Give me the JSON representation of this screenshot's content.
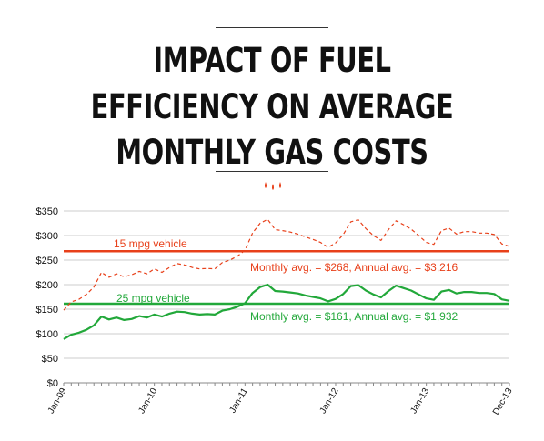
{
  "title_lines": [
    "IMPACT OF FUEL",
    "EFFICIENCY ON AVERAGE",
    "MONTHLY GAS COSTS"
  ],
  "colors": {
    "red": "#e8401a",
    "green": "#22a83a",
    "grid": "#cccccc",
    "text": "#111111"
  },
  "icon": "three-drops-icon",
  "chart_data": {
    "type": "line",
    "title": "IMPACT OF FUEL EFFICIENCY ON AVERAGE MONTHLY GAS COSTS",
    "xlabel": "",
    "ylabel": "",
    "ylim": [
      0,
      350
    ],
    "y_ticks": [
      "$0",
      "$50",
      "$100",
      "$150",
      "$200",
      "$250",
      "$300",
      "$350"
    ],
    "y_tick_values": [
      0,
      50,
      100,
      150,
      200,
      250,
      300,
      350
    ],
    "x_tick_labels": [
      "Jan-09",
      "Jan-10",
      "Jan-11",
      "Jan-12",
      "Jan-13",
      "Dec-13"
    ],
    "x_tick_index": [
      0,
      12,
      24,
      36,
      48,
      59
    ],
    "grid": true,
    "legend": "none",
    "months_first": "Jan-09",
    "months_last": "Dec-13",
    "series": [
      {
        "name": "15 mpg vehicle",
        "style": "dashed",
        "values": [
          148,
          165,
          170,
          180,
          195,
          225,
          215,
          222,
          216,
          220,
          227,
          222,
          232,
          225,
          235,
          243,
          240,
          235,
          232,
          233,
          232,
          245,
          250,
          258,
          270,
          305,
          325,
          333,
          312,
          310,
          307,
          303,
          297,
          292,
          286,
          276,
          285,
          302,
          328,
          332,
          314,
          300,
          290,
          312,
          330,
          322,
          313,
          300,
          286,
          282,
          310,
          315,
          303,
          308,
          308,
          305,
          305,
          302,
          283,
          278
        ]
      },
      {
        "name": "25 mpg vehicle",
        "style": "solid",
        "values": [
          89,
          98,
          102,
          108,
          117,
          135,
          129,
          133,
          128,
          130,
          136,
          133,
          139,
          135,
          141,
          145,
          144,
          141,
          139,
          140,
          139,
          147,
          150,
          155,
          162,
          183,
          195,
          200,
          187,
          186,
          184,
          182,
          178,
          175,
          172,
          166,
          171,
          181,
          197,
          199,
          188,
          180,
          174,
          187,
          198,
          193,
          188,
          180,
          172,
          169,
          186,
          189,
          182,
          185,
          185,
          183,
          183,
          181,
          170,
          167
        ]
      }
    ],
    "averages": [
      {
        "vehicle": "15 mpg vehicle",
        "monthly_value": 268,
        "label": "15 mpg vehicle",
        "annotation": "Monthly avg. = $268, Annual avg. = $3,216"
      },
      {
        "vehicle": "25 mpg vehicle",
        "monthly_value": 161,
        "label": "25 mpg vehicle",
        "annotation": "Monthly avg. = $161, Annual avg. = $1,932"
      }
    ]
  }
}
